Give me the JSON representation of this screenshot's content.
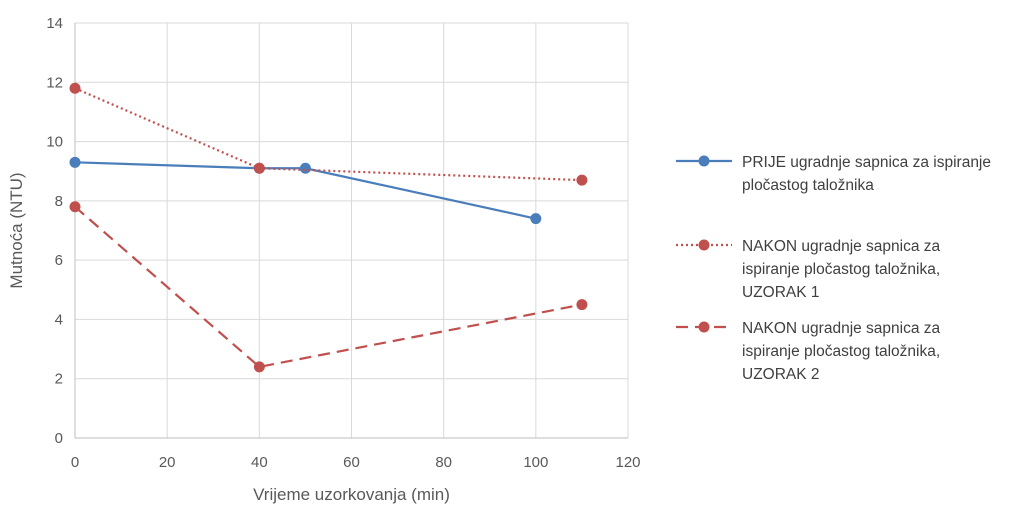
{
  "chart_data": {
    "type": "scatter",
    "xlabel": "Vrijeme uzorkovanja (min)",
    "ylabel": "Mutnoća (NTU)",
    "xlim": [
      0,
      120
    ],
    "ylim": [
      0,
      14
    ],
    "x_ticks": [
      "0",
      "20",
      "40",
      "60",
      "80",
      "100",
      "120"
    ],
    "y_ticks": [
      "0",
      "2",
      "4",
      "6",
      "8",
      "10",
      "12",
      "14"
    ],
    "grid": true,
    "legend_position": "right",
    "series": [
      {
        "name": "PRIJE ugradnje  sapnica za ispiranje pločastog taložnika",
        "legend_lines": [
          "PRIJE ugradnje  sapnica za ispiranje",
          "pločastog taložnika"
        ],
        "color": "#4a7ebb",
        "line_style": "solid",
        "x": [
          0,
          40,
          50,
          100
        ],
        "y": [
          9.3,
          9.1,
          9.1,
          7.4
        ]
      },
      {
        "name": "NAKON ugradnje sapnica za ispiranje pločastog taložnika, UZORAK 1",
        "legend_lines": [
          "NAKON ugradnje sapnica za",
          "ispiranje pločastog taložnika,",
          "UZORAK 1"
        ],
        "color": "#c0504d",
        "line_style": "dotted",
        "x": [
          0,
          40,
          110
        ],
        "y": [
          11.8,
          9.1,
          8.7
        ]
      },
      {
        "name": "NAKON ugradnje sapnica za ispiranje pločastog taložnika, UZORAK 2",
        "legend_lines": [
          "NAKON ugradnje sapnica za",
          "ispiranje pločastog taložnika,",
          "UZORAK 2"
        ],
        "color": "#c0504d",
        "line_style": "dashed",
        "x": [
          0,
          40,
          110
        ],
        "y": [
          7.8,
          2.4,
          4.5
        ]
      }
    ]
  }
}
